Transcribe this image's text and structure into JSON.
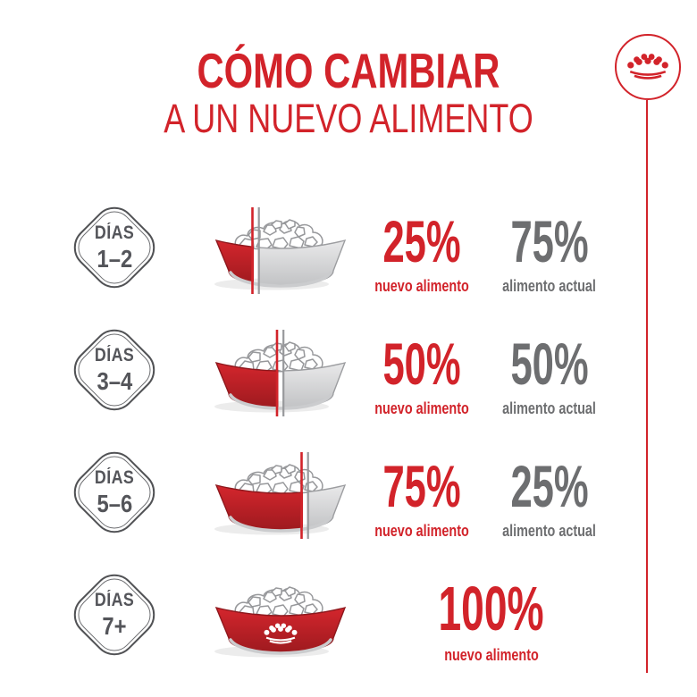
{
  "title": {
    "line1": "CÓMO CAMBIAR",
    "line2": "A UN NUEVO ALIMENTO"
  },
  "brand": {
    "logo_name": "royal-canin-crown-logo"
  },
  "colors": {
    "red": "#d2232a",
    "red_dark": "#9e1a1f",
    "gray_text": "#6d6e70",
    "badge_gray": "#54555a",
    "bowl_gray_light": "#e9e9ea",
    "bowl_gray_dark": "#c2c3c5",
    "divider_gray": "#98999c"
  },
  "rows": [
    {
      "days_label": "DÍAS",
      "days_range": "1–2",
      "new_pct": 25,
      "new_pct_label": "25%",
      "new_caption": "nuevo alimento",
      "current_pct_label": "75%",
      "current_caption": "alimento actual"
    },
    {
      "days_label": "DÍAS",
      "days_range": "3–4",
      "new_pct": 50,
      "new_pct_label": "50%",
      "new_caption": "nuevo alimento",
      "current_pct_label": "50%",
      "current_caption": "alimento actual"
    },
    {
      "days_label": "DÍAS",
      "days_range": "5–6",
      "new_pct": 75,
      "new_pct_label": "75%",
      "new_caption": "nuevo alimento",
      "current_pct_label": "25%",
      "current_caption": "alimento actual"
    },
    {
      "days_label": "DÍAS",
      "days_range": "7+",
      "new_pct": 100,
      "new_pct_label": "100%",
      "new_caption": "nuevo alimento"
    }
  ]
}
